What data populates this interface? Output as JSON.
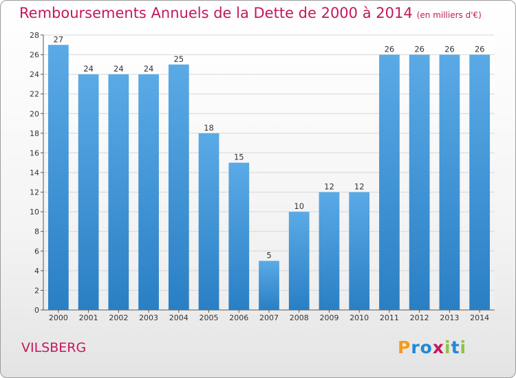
{
  "chart_data": {
    "type": "bar",
    "title": "Remboursements Annuels de la Dette de 2000 à 2014",
    "subtitle": "(en milliers d'€)",
    "categories": [
      "2000",
      "2001",
      "2002",
      "2003",
      "2004",
      "2005",
      "2006",
      "2007",
      "2008",
      "2009",
      "2010",
      "2011",
      "2012",
      "2013",
      "2014"
    ],
    "values": [
      27,
      24,
      24,
      24,
      25,
      18,
      15,
      5,
      10,
      12,
      12,
      26,
      26,
      26,
      26
    ],
    "xlabel": "",
    "ylabel": "",
    "ylim": [
      0,
      28
    ],
    "yticks": [
      0,
      2,
      4,
      6,
      8,
      10,
      12,
      14,
      16,
      18,
      20,
      22,
      24,
      26,
      28
    ],
    "grid": true,
    "bar_color_top": "#5aaae6",
    "bar_color_bottom": "#2a7fc4"
  },
  "footer": {
    "town": "VILSBERG",
    "logo_letters": [
      "P",
      "r",
      "o",
      "x",
      "i",
      "t",
      "i"
    ],
    "logo_colors": [
      "#f59a1e",
      "#1e88d8",
      "#1e88d8",
      "#c2185b",
      "#8bc34a",
      "#1e88d8",
      "#8bc34a"
    ]
  },
  "colors": {
    "accent": "#c2185b"
  }
}
